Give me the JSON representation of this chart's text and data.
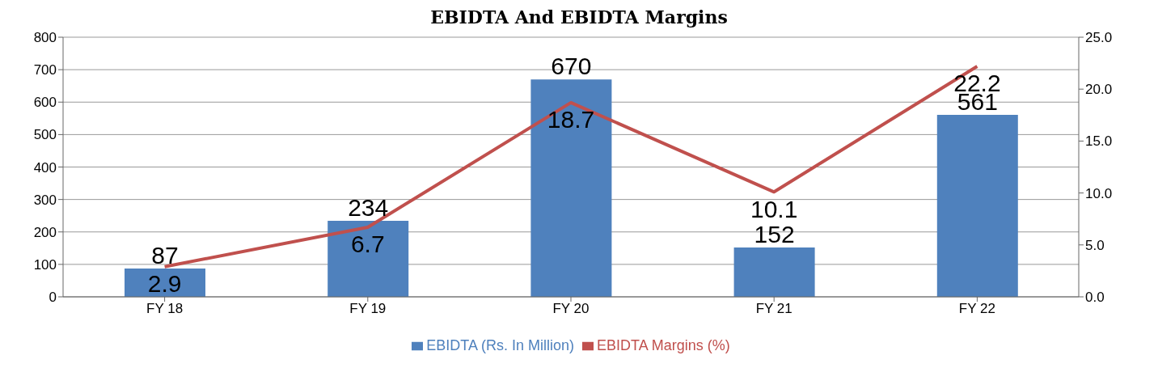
{
  "chart_data": {
    "type": "bar",
    "title": "EBIDTA And EBIDTA Margins",
    "categories": [
      "FY 18",
      "FY 19",
      "FY 20",
      "FY 21",
      "FY 22"
    ],
    "series": [
      {
        "name": "EBIDTA (Rs. In Million)",
        "color": "#4f81bd",
        "values": [
          87,
          234,
          670,
          152,
          561
        ]
      },
      {
        "name": "EBIDTA Margins (%)",
        "type": "line",
        "axis": "y2",
        "color": "#c0504d",
        "values": [
          2.9,
          6.7,
          18.7,
          10.1,
          22.2
        ]
      }
    ],
    "ylim": [
      0,
      800
    ],
    "yticks": [
      0,
      100,
      200,
      300,
      400,
      500,
      600,
      700,
      800
    ],
    "y2lim": [
      0,
      25
    ],
    "y2ticks": [
      {
        "value": 0,
        "label": "0.0"
      },
      {
        "value": 5,
        "label": "5.0"
      },
      {
        "value": 10,
        "label": "10.0"
      },
      {
        "value": 15,
        "label": "15.0"
      },
      {
        "value": 20,
        "label": "20.0"
      },
      {
        "value": 25,
        "label": "25.0"
      }
    ],
    "grid": "y",
    "legend": "bottom",
    "data_labels": true,
    "marker": "none",
    "line_style": "solid"
  }
}
